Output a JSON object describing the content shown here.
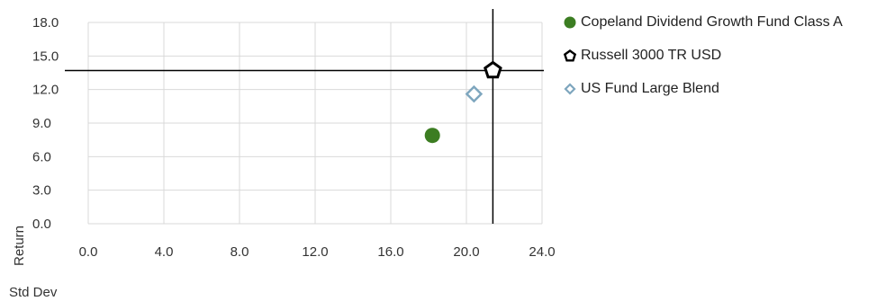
{
  "chart_data": {
    "type": "scatter",
    "xlabel": "Std Dev",
    "ylabel": "Return",
    "xlim": [
      0,
      24
    ],
    "ylim": [
      0,
      18
    ],
    "xticks": [
      "0.0",
      "4.0",
      "8.0",
      "12.0",
      "16.0",
      "20.0",
      "24.0"
    ],
    "yticks": [
      "0.0",
      "3.0",
      "6.0",
      "9.0",
      "12.0",
      "15.0",
      "18.0"
    ],
    "grid": true,
    "legend_position": "top-right",
    "series": [
      {
        "name": "Copeland Dividend Growth Fund Class A",
        "x": 18.2,
        "y": 7.9,
        "marker": "circle",
        "color": "#3c7d22"
      },
      {
        "name": "Russell 3000 TR USD",
        "x": 21.4,
        "y": 13.7,
        "marker": "pentagon",
        "color": "#000000"
      },
      {
        "name": "US Fund Large Blend",
        "x": 20.4,
        "y": 11.6,
        "marker": "diamond",
        "color": "#7ea6be"
      }
    ],
    "crosshair": {
      "x": 21.4,
      "y": 13.7,
      "color": "#000000"
    },
    "gridline_color": "#d9d9d9"
  }
}
